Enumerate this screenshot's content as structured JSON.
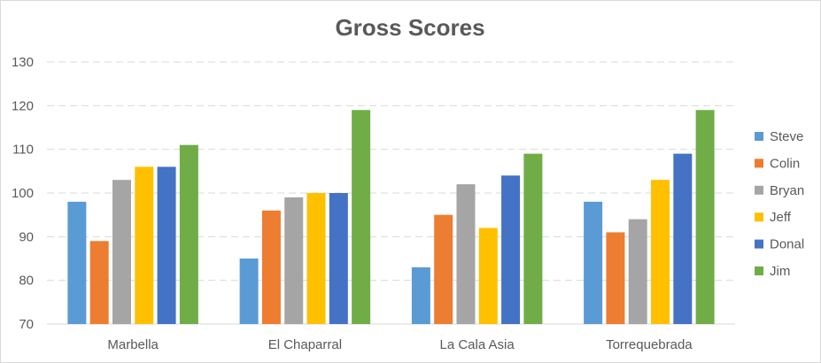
{
  "chart_data": {
    "type": "bar",
    "title": "Gross Scores",
    "xlabel": "",
    "ylabel": "",
    "categories": [
      "Marbella",
      "El Chaparral",
      "La Cala Asia",
      "Torrequebrada"
    ],
    "series": [
      {
        "name": "Steve",
        "color": "#5b9bd5",
        "values": [
          98,
          85,
          83,
          98
        ]
      },
      {
        "name": "Colin",
        "color": "#ed7d31",
        "values": [
          89,
          96,
          95,
          91
        ]
      },
      {
        "name": "Bryan",
        "color": "#a5a5a5",
        "values": [
          103,
          99,
          102,
          94
        ]
      },
      {
        "name": "Jeff",
        "color": "#ffc000",
        "values": [
          106,
          100,
          92,
          103
        ]
      },
      {
        "name": "Donal",
        "color": "#4472c4",
        "values": [
          106,
          100,
          104,
          109
        ]
      },
      {
        "name": "Jim",
        "color": "#70ad47",
        "values": [
          111,
          119,
          109,
          119
        ]
      }
    ],
    "ylim": [
      70,
      130
    ],
    "yticks": [
      70,
      80,
      90,
      100,
      110,
      120,
      130
    ],
    "grid": true,
    "legend_position": "right"
  }
}
